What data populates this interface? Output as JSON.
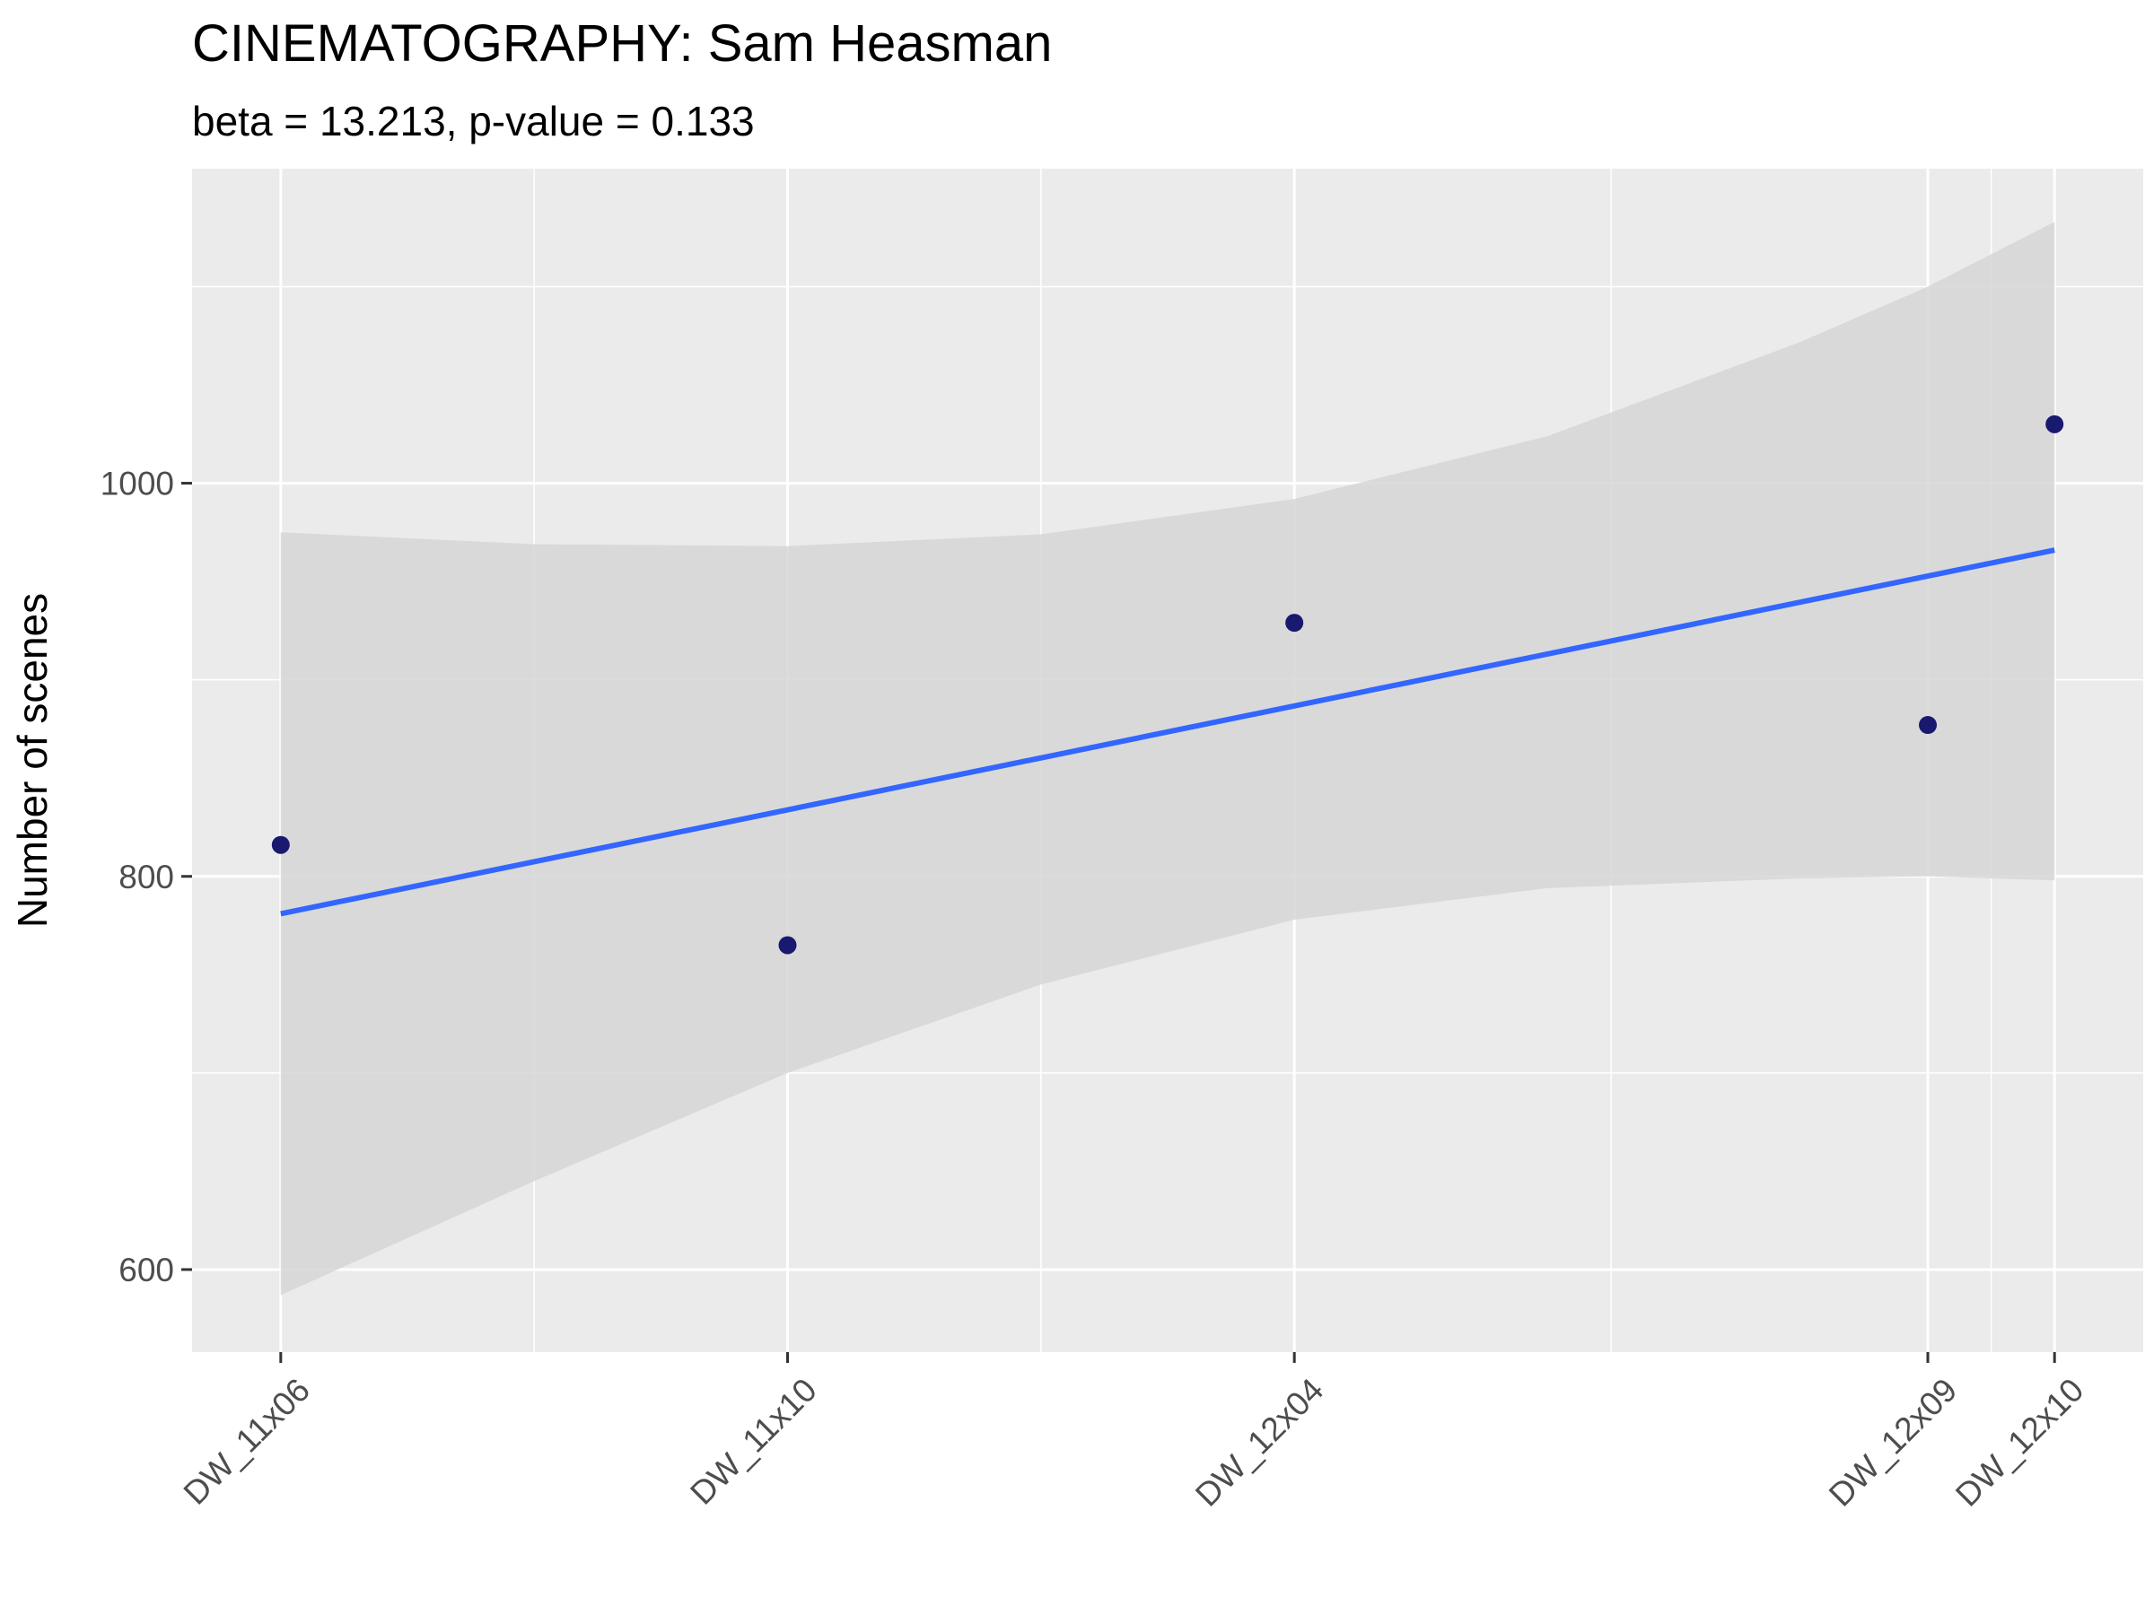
{
  "chart_data": {
    "type": "scatter",
    "title": "CINEMATOGRAPHY: Sam Heasman",
    "subtitle": "beta = 13.213, p-value = 0.133",
    "xlabel": "",
    "ylabel": "Number of scenes",
    "x_ticks": [
      "DW_11x06",
      "DW_11x10",
      "DW_12x04",
      "DW_12x09",
      "DW_12x10"
    ],
    "x_positions": [
      1,
      5,
      9,
      14,
      15
    ],
    "x_range": [
      0.3,
      15.7
    ],
    "y_ticks": [
      600,
      800,
      1000
    ],
    "y_range": [
      558,
      1160
    ],
    "points": [
      {
        "label": "DW_11x06",
        "x": 1,
        "y": 816
      },
      {
        "label": "DW_11x10",
        "x": 5,
        "y": 765
      },
      {
        "label": "DW_12x04",
        "x": 9,
        "y": 929
      },
      {
        "label": "DW_12x09",
        "x": 14,
        "y": 877
      },
      {
        "label": "DW_12x10",
        "x": 15,
        "y": 1030
      }
    ],
    "trend_line": {
      "x": [
        1,
        15
      ],
      "y": [
        781,
        966
      ]
    },
    "confidence_band": {
      "x": [
        1,
        3,
        5,
        7,
        9,
        11,
        13,
        14,
        15
      ],
      "upper": [
        975,
        969,
        968,
        974,
        992,
        1024,
        1072,
        1100,
        1133
      ],
      "lower": [
        587,
        645,
        700,
        745,
        778,
        794,
        799,
        800,
        798
      ]
    },
    "grid": true,
    "colors": {
      "panel_background": "#ebebeb",
      "grid_line": "#ffffff",
      "point": "#191970",
      "trend_line": "#3366ff",
      "confidence_band": "#d6d6d6"
    }
  }
}
